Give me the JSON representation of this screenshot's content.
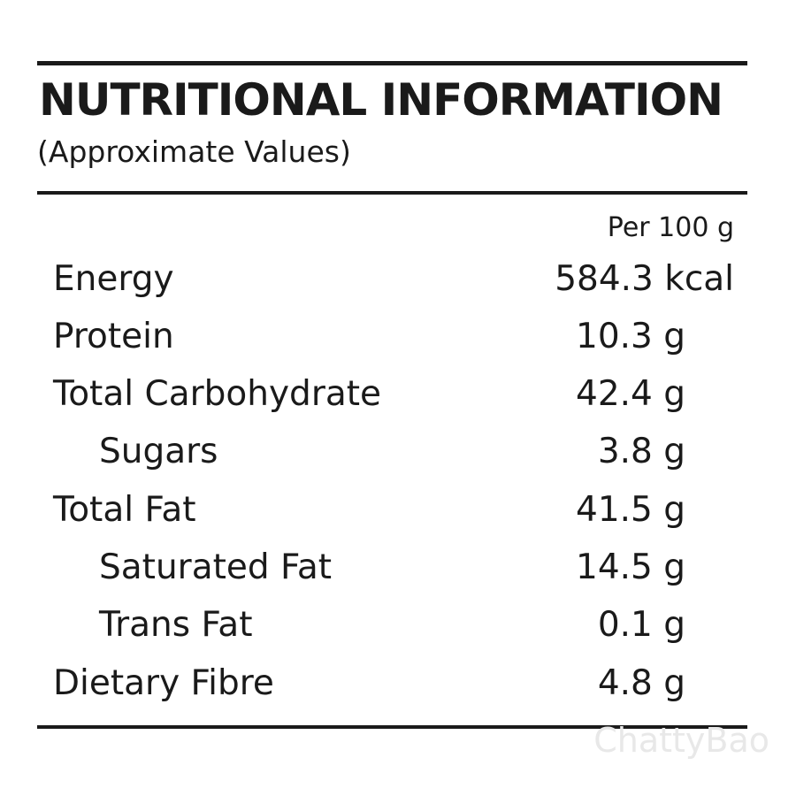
{
  "header": {
    "title": "NUTRITIONAL INFORMATION",
    "subtitle": "(Approximate Values)"
  },
  "table": {
    "column_header": "Per 100 g",
    "rows": [
      [
        "Energy",
        "584.3 kcal"
      ],
      [
        "Protein",
        "10.3 g"
      ],
      [
        "Total Carbohydrate",
        "42.4 g"
      ],
      [
        "Sugars",
        "3.8 g"
      ],
      [
        "Total Fat",
        "41.5 g"
      ],
      [
        "Saturated Fat",
        "14.5 g"
      ],
      [
        "Trans Fat",
        "0.1 g"
      ],
      [
        "Dietary Fibre",
        "4.8 g"
      ]
    ]
  },
  "watermark": "ChattyBao"
}
